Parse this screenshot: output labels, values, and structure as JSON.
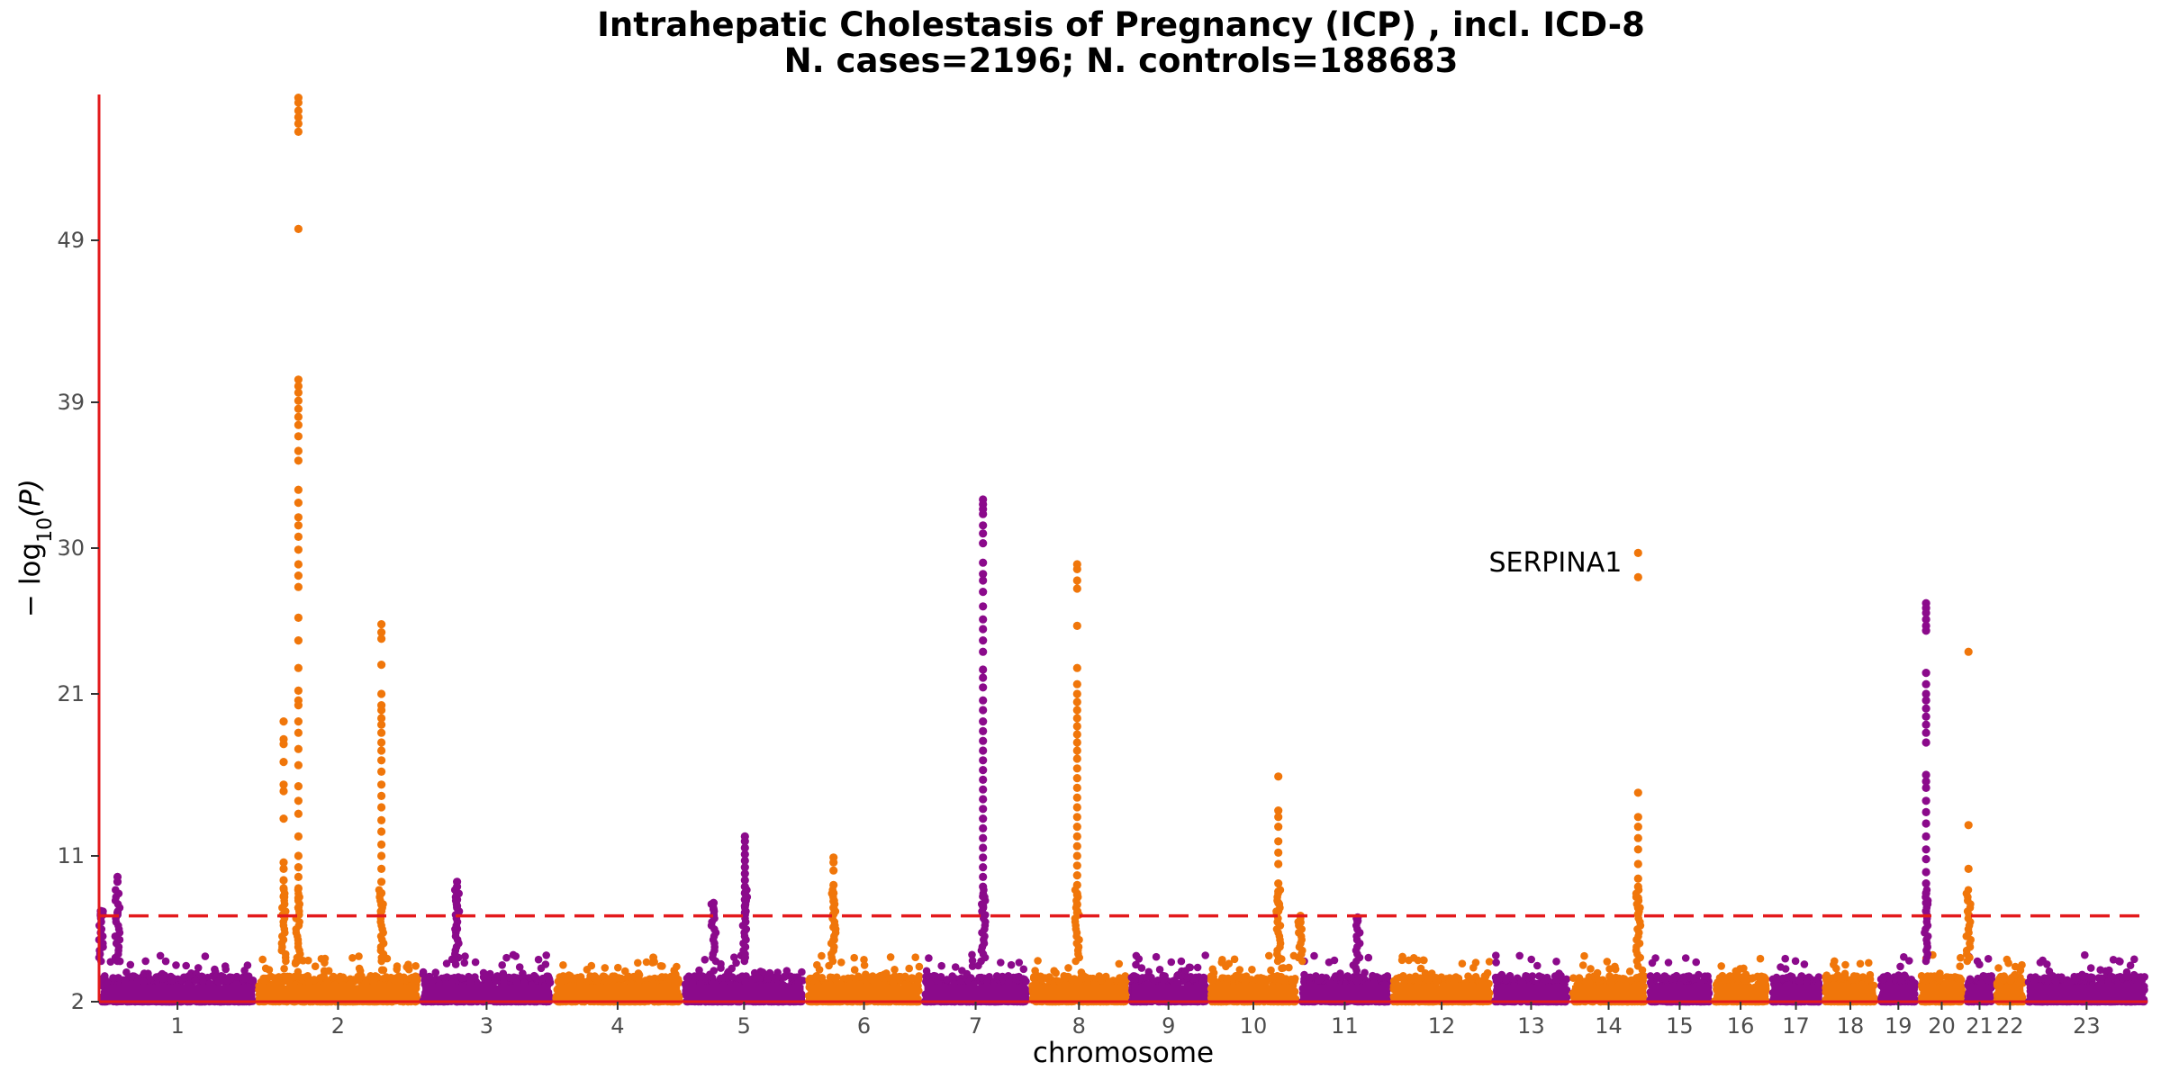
{
  "chart_data": {
    "type": "scatter",
    "subtype": "manhattan",
    "title": "Intrahepatic Cholestasis of Pregnancy (ICP) , incl. ICD-8",
    "subtitle": "N. cases=2196; N. controls=188683",
    "xlabel": "chromosome",
    "ylabel": "− log10(P)",
    "ylim": [
      2,
      58
    ],
    "yticks": [
      2,
      11,
      21,
      30,
      39,
      49
    ],
    "threshold": 7.3,
    "threshold_style": "dashed red",
    "colors": {
      "odd": "#8B0A8B",
      "even": "#F0760A",
      "threshold": "#E31A1C",
      "axis": "#E31A1C"
    },
    "chromosomes": [
      {
        "chr": "1",
        "start": 0,
        "end": 8.5
      },
      {
        "chr": "2",
        "start": 8.5,
        "end": 17.4
      },
      {
        "chr": "3",
        "start": 17.4,
        "end": 24.6
      },
      {
        "chr": "4",
        "start": 24.6,
        "end": 31.6
      },
      {
        "chr": "5",
        "start": 31.6,
        "end": 38.3
      },
      {
        "chr": "6",
        "start": 38.3,
        "end": 44.6
      },
      {
        "chr": "7",
        "start": 44.6,
        "end": 50.4
      },
      {
        "chr": "8",
        "start": 50.4,
        "end": 55.8
      },
      {
        "chr": "9",
        "start": 55.8,
        "end": 60.1
      },
      {
        "chr": "10",
        "start": 60.1,
        "end": 65.0
      },
      {
        "chr": "11",
        "start": 65.0,
        "end": 70.0
      },
      {
        "chr": "12",
        "start": 70.0,
        "end": 75.5
      },
      {
        "chr": "13",
        "start": 75.5,
        "end": 79.7
      },
      {
        "chr": "14",
        "start": 79.7,
        "end": 83.9
      },
      {
        "chr": "15",
        "start": 83.9,
        "end": 87.4
      },
      {
        "chr": "16",
        "start": 87.4,
        "end": 90.5
      },
      {
        "chr": "17",
        "start": 90.5,
        "end": 93.4
      },
      {
        "chr": "18",
        "start": 93.4,
        "end": 96.4
      },
      {
        "chr": "19",
        "start": 96.4,
        "end": 98.6
      },
      {
        "chr": "20",
        "start": 98.6,
        "end": 101.1
      },
      {
        "chr": "21",
        "start": 101.1,
        "end": 102.7
      },
      {
        "chr": "22",
        "start": 102.7,
        "end": 104.4
      },
      {
        "chr": "23",
        "start": 104.4,
        "end": 111.0
      }
    ],
    "peaks": [
      {
        "chr": "1",
        "pos": 0.1,
        "values": [
          7.6,
          7.4,
          7.3
        ]
      },
      {
        "chr": "1",
        "pos": 1.0,
        "values": [
          9.7,
          9.4,
          7.5
        ]
      },
      {
        "chr": "2",
        "pos": 10.0,
        "values": [
          19.3,
          18.2,
          17.9,
          16.8,
          15.4,
          15.0,
          13.3,
          10.6,
          10.2,
          9.5,
          9.0,
          8.5
        ]
      },
      {
        "chr": "2",
        "pos": 10.8,
        "values": [
          57.8,
          57.5,
          57.0,
          56.6,
          56.2,
          55.7,
          49.7,
          40.4,
          40.0,
          39.6,
          39.1,
          38.6,
          38.1,
          37.6,
          36.9,
          36.0,
          35.4,
          33.6,
          32.8,
          31.9,
          31.4,
          30.7,
          29.9,
          29.0,
          28.3,
          27.6,
          25.7,
          24.3,
          22.6,
          21.2,
          20.6,
          20.3,
          19.3,
          18.6,
          17.6,
          16.6,
          15.3,
          14.4,
          13.6,
          12.2,
          11.0,
          10.3,
          9.7,
          9.0,
          8.4,
          7.8
        ]
      },
      {
        "chr": "2",
        "pos": 15.3,
        "values": [
          25.3,
          24.8,
          24.4,
          22.8,
          21.0,
          20.3,
          20.0,
          19.5,
          19.1,
          18.6,
          18.0,
          17.5,
          16.9,
          16.2,
          15.4,
          14.7,
          14.0,
          13.2,
          12.5,
          11.7,
          11.0,
          10.2,
          9.4,
          8.7,
          8.0,
          7.6
        ]
      },
      {
        "chr": "3",
        "pos": 19.4,
        "values": [
          9.4,
          9.1,
          8.7,
          8.3,
          7.9,
          7.4,
          6.5
        ]
      },
      {
        "chr": "5",
        "pos": 33.3,
        "values": [
          8.1,
          7.7,
          7.3
        ]
      },
      {
        "chr": "5",
        "pos": 35.0,
        "values": [
          12.2,
          11.9,
          11.5,
          11.1,
          10.7,
          10.3,
          9.9,
          9.5,
          9.1,
          8.7,
          8.3,
          7.9,
          7.5
        ]
      },
      {
        "chr": "6",
        "pos": 39.8,
        "values": [
          10.9,
          10.6,
          10.1,
          9.2,
          8.7,
          8.2,
          7.8,
          7.4,
          6.6,
          5.8
        ]
      },
      {
        "chr": "7",
        "pos": 47.9,
        "values": [
          33.0,
          32.7,
          32.4,
          32.1,
          31.4,
          30.9,
          30.3,
          29.1,
          28.4,
          28.0,
          27.3,
          26.4,
          25.6,
          25.0,
          24.3,
          23.6,
          22.5,
          22.0,
          21.4,
          20.6,
          20.0,
          19.3,
          18.7,
          18.1,
          17.5,
          16.9,
          16.3,
          15.7,
          15.1,
          14.5,
          13.9,
          13.3,
          12.7,
          12.1,
          11.5,
          10.9,
          10.3,
          9.7,
          9.1,
          8.5,
          7.9,
          7.4
        ]
      },
      {
        "chr": "8",
        "pos": 53.0,
        "values": [
          29.0,
          28.7,
          28.0,
          27.5,
          25.2,
          22.6,
          21.6,
          21.0,
          20.5,
          20.0,
          19.5,
          19.0,
          18.5,
          18.0,
          17.5,
          17.0,
          16.4,
          15.8,
          15.2,
          14.6,
          14.0,
          13.4,
          12.8,
          12.2,
          11.6,
          11.0,
          10.4,
          9.8,
          9.2,
          8.6,
          8.0,
          7.5
        ]
      },
      {
        "chr": "10",
        "pos": 63.9,
        "values": [
          15.9,
          13.8,
          13.4,
          12.8,
          11.9,
          11.2,
          10.5,
          9.3,
          8.8,
          8.1,
          7.6
        ]
      },
      {
        "chr": "10",
        "pos": 65.1,
        "values": [
          7.3,
          6.9
        ]
      },
      {
        "chr": "11",
        "pos": 68.2,
        "values": [
          7.2,
          7.0
        ]
      },
      {
        "chr": "14",
        "pos": 83.4,
        "values": [
          29.7,
          28.2,
          14.9,
          13.4,
          12.8,
          12.1,
          11.4,
          10.5,
          9.6,
          9.1,
          8.4,
          7.8,
          7.4
        ]
      },
      {
        "chr": "19",
        "pos": 99.0,
        "values": [
          26.6,
          26.3,
          26.0,
          25.6,
          25.2,
          24.9,
          22.3,
          21.6,
          21.0,
          20.6,
          20.1,
          19.6,
          19.1,
          18.6,
          18.0,
          16.0,
          15.6,
          15.2,
          14.4,
          13.7,
          13.0,
          12.2,
          11.4,
          10.8,
          10.0,
          9.3,
          8.7,
          8.1,
          7.6
        ]
      },
      {
        "chr": "20",
        "pos": 101.3,
        "values": [
          23.6,
          12.9,
          10.2
        ]
      }
    ],
    "annotations": [
      {
        "text": "SERPINA1",
        "x": 83.4,
        "y": 29.1
      }
    ]
  }
}
